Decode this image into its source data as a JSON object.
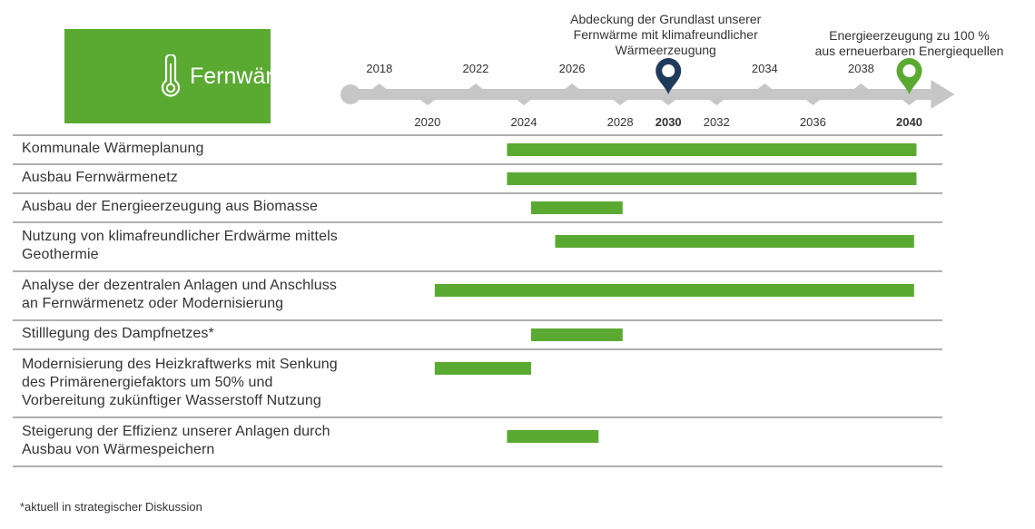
{
  "header": {
    "title": "Fernwärme",
    "icon": "thermometer-icon"
  },
  "colors": {
    "accent_green": "#5aaa32",
    "timeline_gray": "#c6c6c6",
    "milestone_dark": "#203a5a",
    "milestone_green": "#5aaa32",
    "row_line": "#7f7f7f"
  },
  "footnote": "*aktuell in strategischer Diskussion",
  "chart_data": {
    "type": "bar",
    "subtype": "timeline-gantt",
    "axis": {
      "range": [
        2016.8,
        2041.3
      ],
      "ticks_top": [
        "2018",
        "2022",
        "2026",
        "2034",
        "2038"
      ],
      "ticks_bottom": [
        "2020",
        "2024",
        "2028",
        "2030",
        "2032",
        "2036",
        "2040"
      ],
      "bold_ticks": [
        "2030",
        "2040"
      ]
    },
    "milestones": [
      {
        "year": 2030,
        "label": "Abdeckung der Grundlast unserer\nFernwärme mit klimafreundlicher\nWärmeerzeugung",
        "color": "#203a5a",
        "icon": "map-pin-icon"
      },
      {
        "year": 2040,
        "label": "Energieerzeugung zu 100 %\naus erneuerbaren Energiequellen",
        "color": "#5aaa32",
        "icon": "map-pin-icon"
      }
    ],
    "tasks": [
      {
        "label": "Kommunale Wärmeplanung",
        "start": 2023.3,
        "end": 2040.3
      },
      {
        "label": "Ausbau Fernwärmenetz",
        "start": 2023.3,
        "end": 2040.3
      },
      {
        "label": "Ausbau der Energieerzeugung aus Biomasse",
        "start": 2024.3,
        "end": 2028.1
      },
      {
        "label": "Nutzung  von klimafreundlicher  Erdwärme mittels\nGeothermie",
        "start": 2025.3,
        "end": 2040.2
      },
      {
        "label": "Analyse  der dezentralen Anlagen und Anschluss\nan Fernwärmenetz  oder Modernisierung",
        "start": 2020.3,
        "end": 2040.2
      },
      {
        "label": "Stilllegung des Dampfnetzes*",
        "start": 2024.3,
        "end": 2028.1
      },
      {
        "label": "Modernisierung des Heizkraftwerks  mit Senkung\ndes Primärenergiefaktors um 50% und\nVorbereitung  zukünftiger  Wasserstoff Nutzung",
        "start": 2020.3,
        "end": 2024.3
      },
      {
        "label": "Steigerung der Effizienz  unserer Anlagen durch\nAusbau von Wärmespeichern",
        "start": 2023.3,
        "end": 2027.1
      }
    ]
  }
}
